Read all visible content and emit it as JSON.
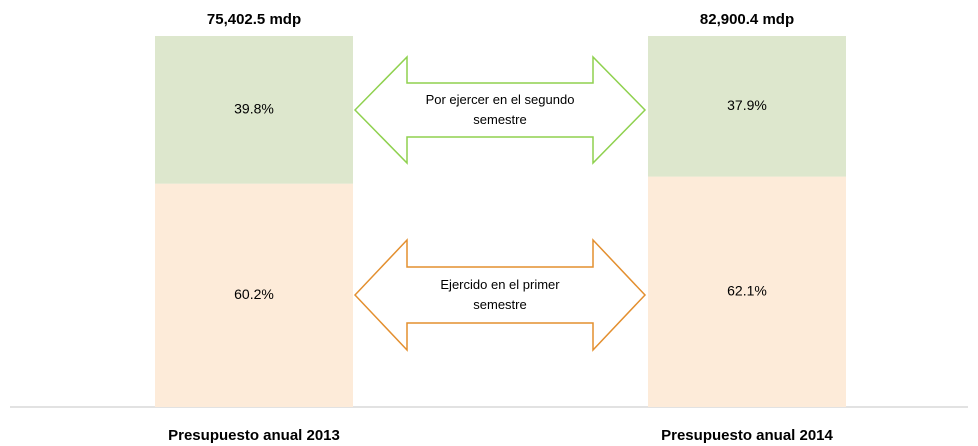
{
  "chart_data": {
    "type": "stacked_bar",
    "categories": [
      "Presupuesto anual 2013",
      "Presupuesto anual 2014"
    ],
    "total_labels": [
      "75,402.5 mdp",
      "82,900.4 mdp"
    ],
    "series": [
      {
        "name": "Ejercido en el primer semestre",
        "color": "#fdebd9",
        "arrow_color": "#e38f2f",
        "values": [
          60.2,
          62.1
        ],
        "value_labels": [
          "60.2%",
          "62.1%"
        ]
      },
      {
        "name": "Por ejercer en el segundo semestre",
        "color": "#dde7cd",
        "arrow_color": "#8fd14f",
        "values": [
          39.8,
          37.9
        ],
        "value_labels": [
          "39.8%",
          "37.9%"
        ]
      }
    ],
    "ylim": [
      0,
      100
    ]
  }
}
